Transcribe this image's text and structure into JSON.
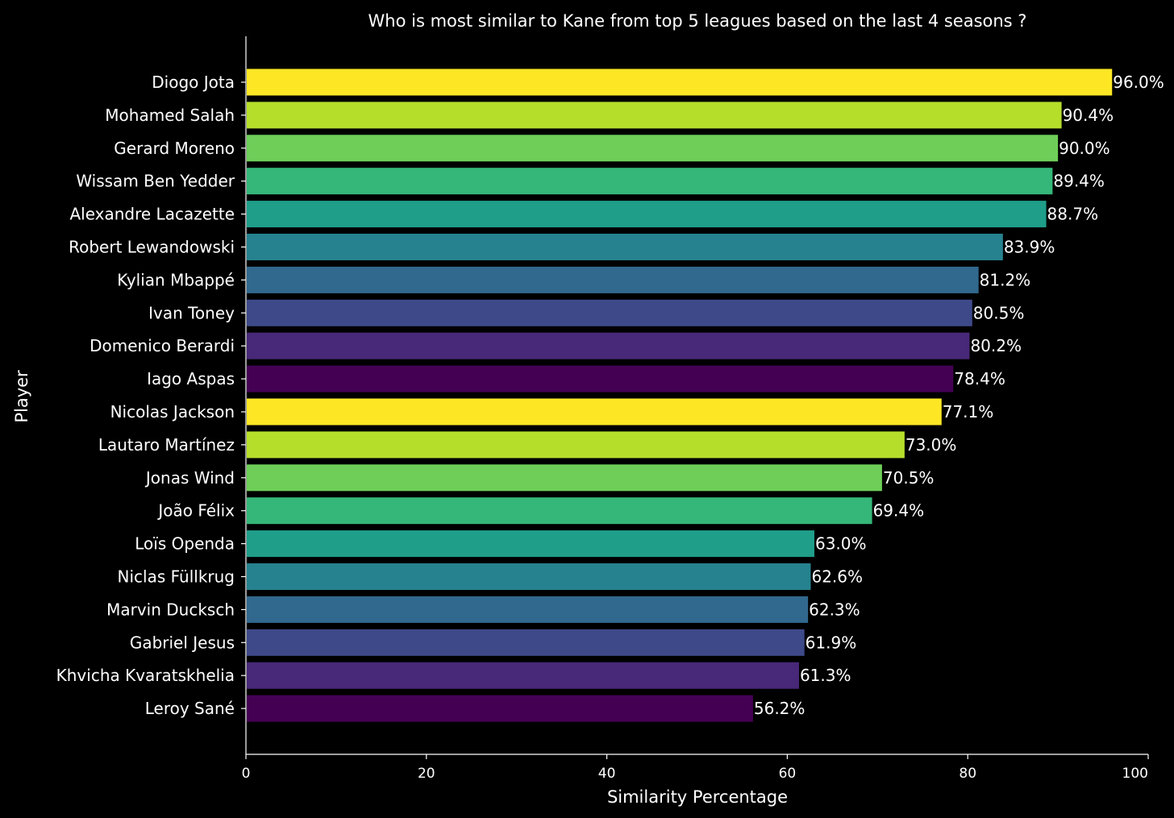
{
  "chart_data": {
    "type": "bar",
    "orientation": "horizontal",
    "title": "Who is most similar to Kane from top 5 leagues based on the last 4 seasons ?",
    "xlabel": "Similarity Percentage",
    "ylabel": "Player",
    "xlim": [
      0,
      100
    ],
    "xticks": [
      0,
      20,
      40,
      60,
      80,
      100
    ],
    "grid": false,
    "legend": "none",
    "categories": [
      "Diogo Jota",
      "Mohamed Salah",
      "Gerard Moreno",
      "Wissam Ben Yedder",
      "Alexandre Lacazette",
      "Robert Lewandowski",
      "Kylian Mbappé",
      "Ivan Toney",
      "Domenico Berardi",
      "Iago Aspas",
      "Nicolas Jackson",
      "Lautaro Martínez",
      "Jonas Wind",
      "João Félix",
      "Loïs Openda",
      "Niclas Füllkrug",
      "Marvin Ducksch",
      "Gabriel Jesus",
      "Khvicha Kvaratskhelia",
      "Leroy Sané"
    ],
    "values": [
      96.0,
      90.4,
      90.0,
      89.4,
      88.7,
      83.9,
      81.2,
      80.5,
      80.2,
      78.4,
      77.1,
      73.0,
      70.5,
      69.4,
      63.0,
      62.6,
      62.3,
      61.9,
      61.3,
      56.2
    ],
    "value_labels": [
      "96.0%",
      "90.4%",
      "90.0%",
      "89.4%",
      "88.7%",
      "83.9%",
      "81.2%",
      "80.5%",
      "80.2%",
      "78.4%",
      "77.1%",
      "73.0%",
      "70.5%",
      "69.4%",
      "63.0%",
      "62.6%",
      "62.3%",
      "61.9%",
      "61.3%",
      "56.2%"
    ],
    "colors": [
      "#fde725",
      "#b5de2b",
      "#6ece58",
      "#35b779",
      "#1f9e89",
      "#26828e",
      "#31688e",
      "#3e4989",
      "#482878",
      "#440154",
      "#fde725",
      "#b5de2b",
      "#6ece58",
      "#35b779",
      "#1f9e89",
      "#26828e",
      "#31688e",
      "#3e4989",
      "#482878",
      "#440154"
    ],
    "background_color": "#000000",
    "text_color": "#ffffff"
  }
}
